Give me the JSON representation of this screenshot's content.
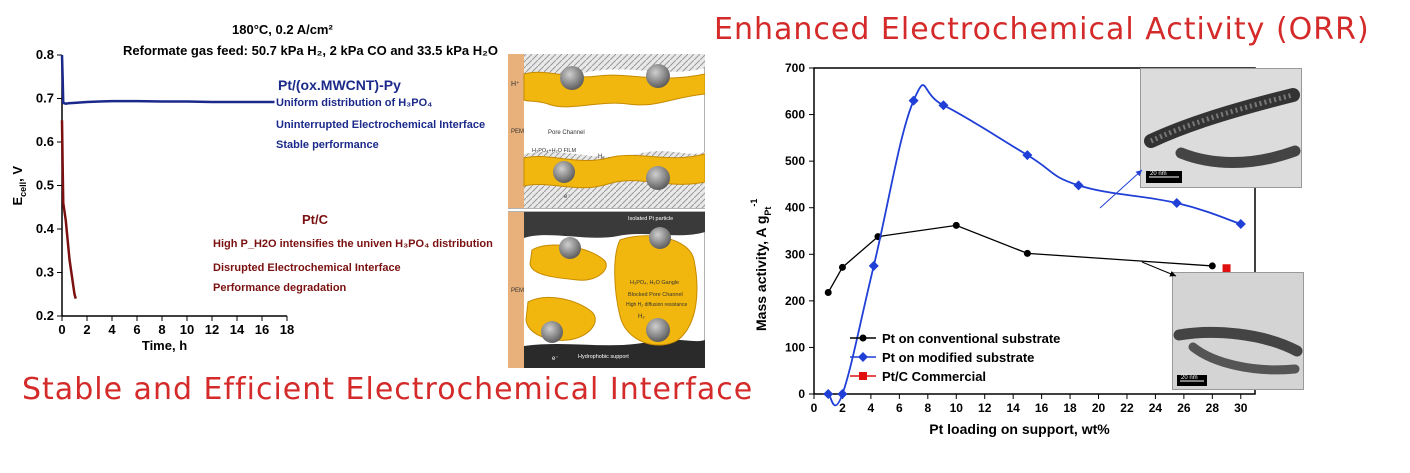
{
  "headings": {
    "top_right": "Enhanced Electrochemical Activity (ORR)",
    "bottom_left": "Stable and Efficient Electrochemical Interface"
  },
  "left_chart_text": {
    "condition": "180°C, 0.2 A/cm²",
    "gas_feed": "Reformate gas feed: 50.7 kPa H₂, 2 kPa CO and 33.5 kPa H₂O",
    "pt_py_title": "Pt/(ox.MWCNT)-Py",
    "pt_py_line1": "Uniform distribution of H₃PO₄",
    "pt_py_line2": "Uninterrupted Electrochemical Interface",
    "pt_py_line3": "Stable performance",
    "ptc_title": "Pt/C",
    "ptc_line1": "High P_H2O intensifies the univen H₃PO₄ distribution",
    "ptc_line2": "Disrupted Electrochemical Interface",
    "ptc_line3": "Performance degradation"
  },
  "schematic": {
    "top_labels": [
      "H⁺",
      "PEM",
      "Pore Channel",
      "H₃PO₄+H₂O FILM",
      "H₂",
      "e⁻"
    ],
    "bottom_labels": [
      "Isolated Pt particle",
      "H₃PO₄, H₂O Gangle",
      "Blocked Pore Channel",
      "High H₂ diffusion resistance",
      "PEM",
      "Hydrophobic support",
      "e⁻",
      "H₂"
    ]
  },
  "tem_scale": "20 nm",
  "colors": {
    "heading_red": "#d42a2a",
    "pt_py_blue": "#1b2a8a",
    "ptc_darkred": "#7a1010",
    "conventional": "#000000",
    "modified": "#1f3fd6",
    "commercial": "#e01010",
    "membrane_orange": "#e8b07a",
    "ionomer_yellow": "#f2b70f"
  },
  "chart_data": [
    {
      "type": "line",
      "xlabel": "Time, h",
      "ylabel": "E_cell, V",
      "xlim": [
        0,
        18
      ],
      "ylim": [
        0.2,
        0.8
      ],
      "xticks": [
        0,
        2,
        4,
        6,
        8,
        10,
        12,
        14,
        16,
        18
      ],
      "yticks": [
        0.2,
        0.3,
        0.4,
        0.5,
        0.6,
        0.7,
        0.8
      ],
      "series": [
        {
          "name": "Pt/(ox.MWCNT)-Py",
          "x": [
            0,
            0.05,
            0.1,
            0.3,
            0.5,
            1,
            2,
            3,
            4,
            6,
            8,
            10,
            12,
            14,
            16,
            17
          ],
          "y": [
            0.8,
            0.75,
            0.69,
            0.688,
            0.689,
            0.69,
            0.692,
            0.693,
            0.694,
            0.694,
            0.693,
            0.693,
            0.692,
            0.692,
            0.692,
            0.692
          ]
        },
        {
          "name": "Pt/C",
          "x": [
            0,
            0.05,
            0.1,
            0.2,
            0.3,
            0.4,
            0.5,
            0.6,
            0.7,
            0.8,
            0.9,
            1.0,
            1.1
          ],
          "y": [
            0.65,
            0.55,
            0.46,
            0.44,
            0.42,
            0.39,
            0.36,
            0.33,
            0.31,
            0.29,
            0.27,
            0.25,
            0.24
          ]
        }
      ]
    },
    {
      "type": "line",
      "xlabel": "Pt loading on support, wt%",
      "ylabel": "Mass activity, A g_Pt^-1",
      "xlim": [
        0,
        31
      ],
      "ylim": [
        0,
        700
      ],
      "xticks": [
        0,
        2,
        4,
        6,
        8,
        10,
        12,
        14,
        16,
        18,
        20,
        22,
        24,
        26,
        28,
        30
      ],
      "yticks": [
        0,
        100,
        200,
        300,
        400,
        500,
        600,
        700
      ],
      "series": [
        {
          "name": "Pt on conventional substrate",
          "x": [
            1,
            2,
            4.5,
            10,
            15,
            28
          ],
          "y": [
            218,
            272,
            338,
            362,
            302,
            275
          ]
        },
        {
          "name": "Pt on modified substrate",
          "x": [
            1,
            2,
            4.2,
            7,
            9.1,
            15,
            18.6,
            25.5,
            30
          ],
          "y": [
            0,
            0,
            275,
            630,
            620,
            513,
            448,
            410,
            365
          ]
        },
        {
          "name": "Pt/C Commercial",
          "x": [
            29
          ],
          "y": [
            270
          ]
        }
      ],
      "legend_position": "bottom-right"
    }
  ]
}
